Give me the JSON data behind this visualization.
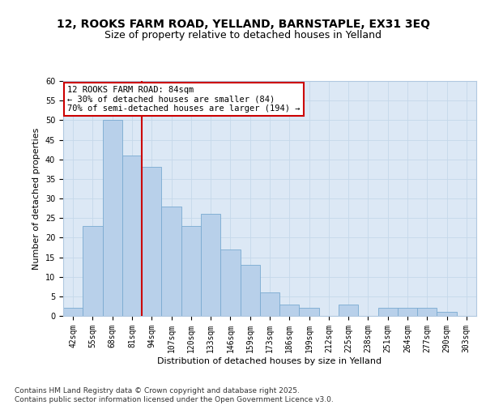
{
  "title_line1": "12, ROOKS FARM ROAD, YELLAND, BARNSTAPLE, EX31 3EQ",
  "title_line2": "Size of property relative to detached houses in Yelland",
  "xlabel": "Distribution of detached houses by size in Yelland",
  "ylabel": "Number of detached properties",
  "categories": [
    "42sqm",
    "55sqm",
    "68sqm",
    "81sqm",
    "94sqm",
    "107sqm",
    "120sqm",
    "133sqm",
    "146sqm",
    "159sqm",
    "173sqm",
    "186sqm",
    "199sqm",
    "212sqm",
    "225sqm",
    "238sqm",
    "251sqm",
    "264sqm",
    "277sqm",
    "290sqm",
    "303sqm"
  ],
  "values": [
    2,
    23,
    50,
    41,
    38,
    28,
    23,
    26,
    17,
    13,
    6,
    3,
    2,
    0,
    3,
    0,
    2,
    2,
    2,
    1,
    0
  ],
  "bar_color": "#b8d0ea",
  "bar_edge_color": "#7aaad0",
  "vline_x": 3.5,
  "vline_color": "#cc0000",
  "annotation_text": "12 ROOKS FARM ROAD: 84sqm\n← 30% of detached houses are smaller (84)\n70% of semi-detached houses are larger (194) →",
  "annotation_box_facecolor": "#ffffff",
  "annotation_box_edgecolor": "#cc0000",
  "ylim": [
    0,
    60
  ],
  "yticks": [
    0,
    5,
    10,
    15,
    20,
    25,
    30,
    35,
    40,
    45,
    50,
    55,
    60
  ],
  "grid_color": "#c5d8ea",
  "background_color": "#dce8f5",
  "footer_text": "Contains HM Land Registry data © Crown copyright and database right 2025.\nContains public sector information licensed under the Open Government Licence v3.0.",
  "title_fontsize": 10,
  "subtitle_fontsize": 9,
  "axis_label_fontsize": 8,
  "tick_fontsize": 7,
  "annotation_fontsize": 7.5,
  "footer_fontsize": 6.5
}
